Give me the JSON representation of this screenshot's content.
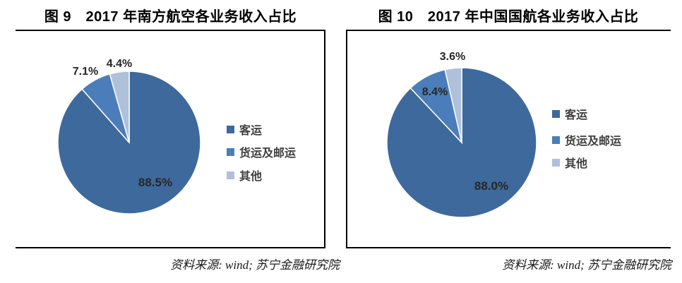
{
  "page": {
    "background": "#ffffff",
    "rule_color": "#000000"
  },
  "chart_data": [
    {
      "type": "pie",
      "title": "图 9　2017 年南方航空各业务收入占比",
      "categories": [
        "客运",
        "货运及邮运",
        "其他"
      ],
      "values": [
        88.5,
        7.1,
        4.4
      ],
      "labels": [
        "88.5%",
        "7.1%",
        "4.4%"
      ],
      "colors": [
        "#3E699C",
        "#4C7DBB",
        "#AFC0DB"
      ],
      "legend_position": "right",
      "start_angle_deg": 0,
      "direction": "clockwise",
      "source_note": "资料来源: wind; 苏宁金融研究院"
    },
    {
      "type": "pie",
      "title": "图 10　2017 年中国国航各业务收入占比",
      "categories": [
        "客运",
        "货运及邮运",
        "其他"
      ],
      "values": [
        88.0,
        8.4,
        3.6
      ],
      "labels": [
        "88.0%",
        "8.4%",
        "3.6%"
      ],
      "colors": [
        "#3E699C",
        "#4C7DBB",
        "#AFC0DB"
      ],
      "legend_position": "right",
      "start_angle_deg": 0,
      "direction": "clockwise",
      "source_note": "资料来源: wind; 苏宁金融研究院"
    }
  ]
}
